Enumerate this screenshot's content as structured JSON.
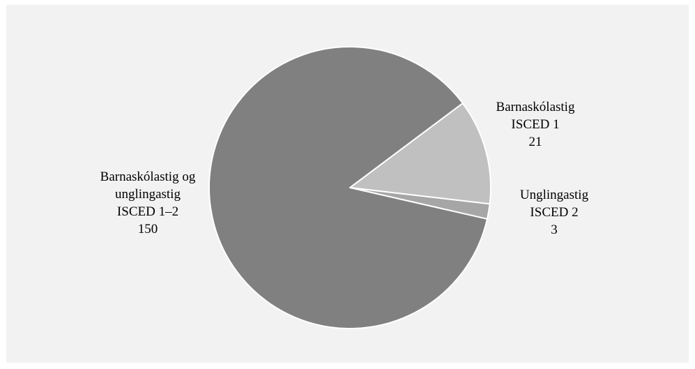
{
  "chart_data": {
    "type": "pie",
    "slices": [
      {
        "id": "isced12",
        "label_lines": [
          "Barnaskólastig og",
          "unglingastig",
          "ISCED 1–2"
        ],
        "value": 150,
        "value_text": "150",
        "color": "#808080"
      },
      {
        "id": "isced1",
        "label_lines": [
          "Barnaskólastig",
          "ISCED 1"
        ],
        "value": 21,
        "value_text": "21",
        "color": "#c0c0c0"
      },
      {
        "id": "isced2",
        "label_lines": [
          "Unglingastig",
          "ISCED 2"
        ],
        "value": 3,
        "value_text": "3",
        "color": "#a6a6a6"
      }
    ],
    "background_color": "#f2f2f2",
    "slice_border_color": "#ffffff",
    "legend": "none",
    "title": ""
  }
}
